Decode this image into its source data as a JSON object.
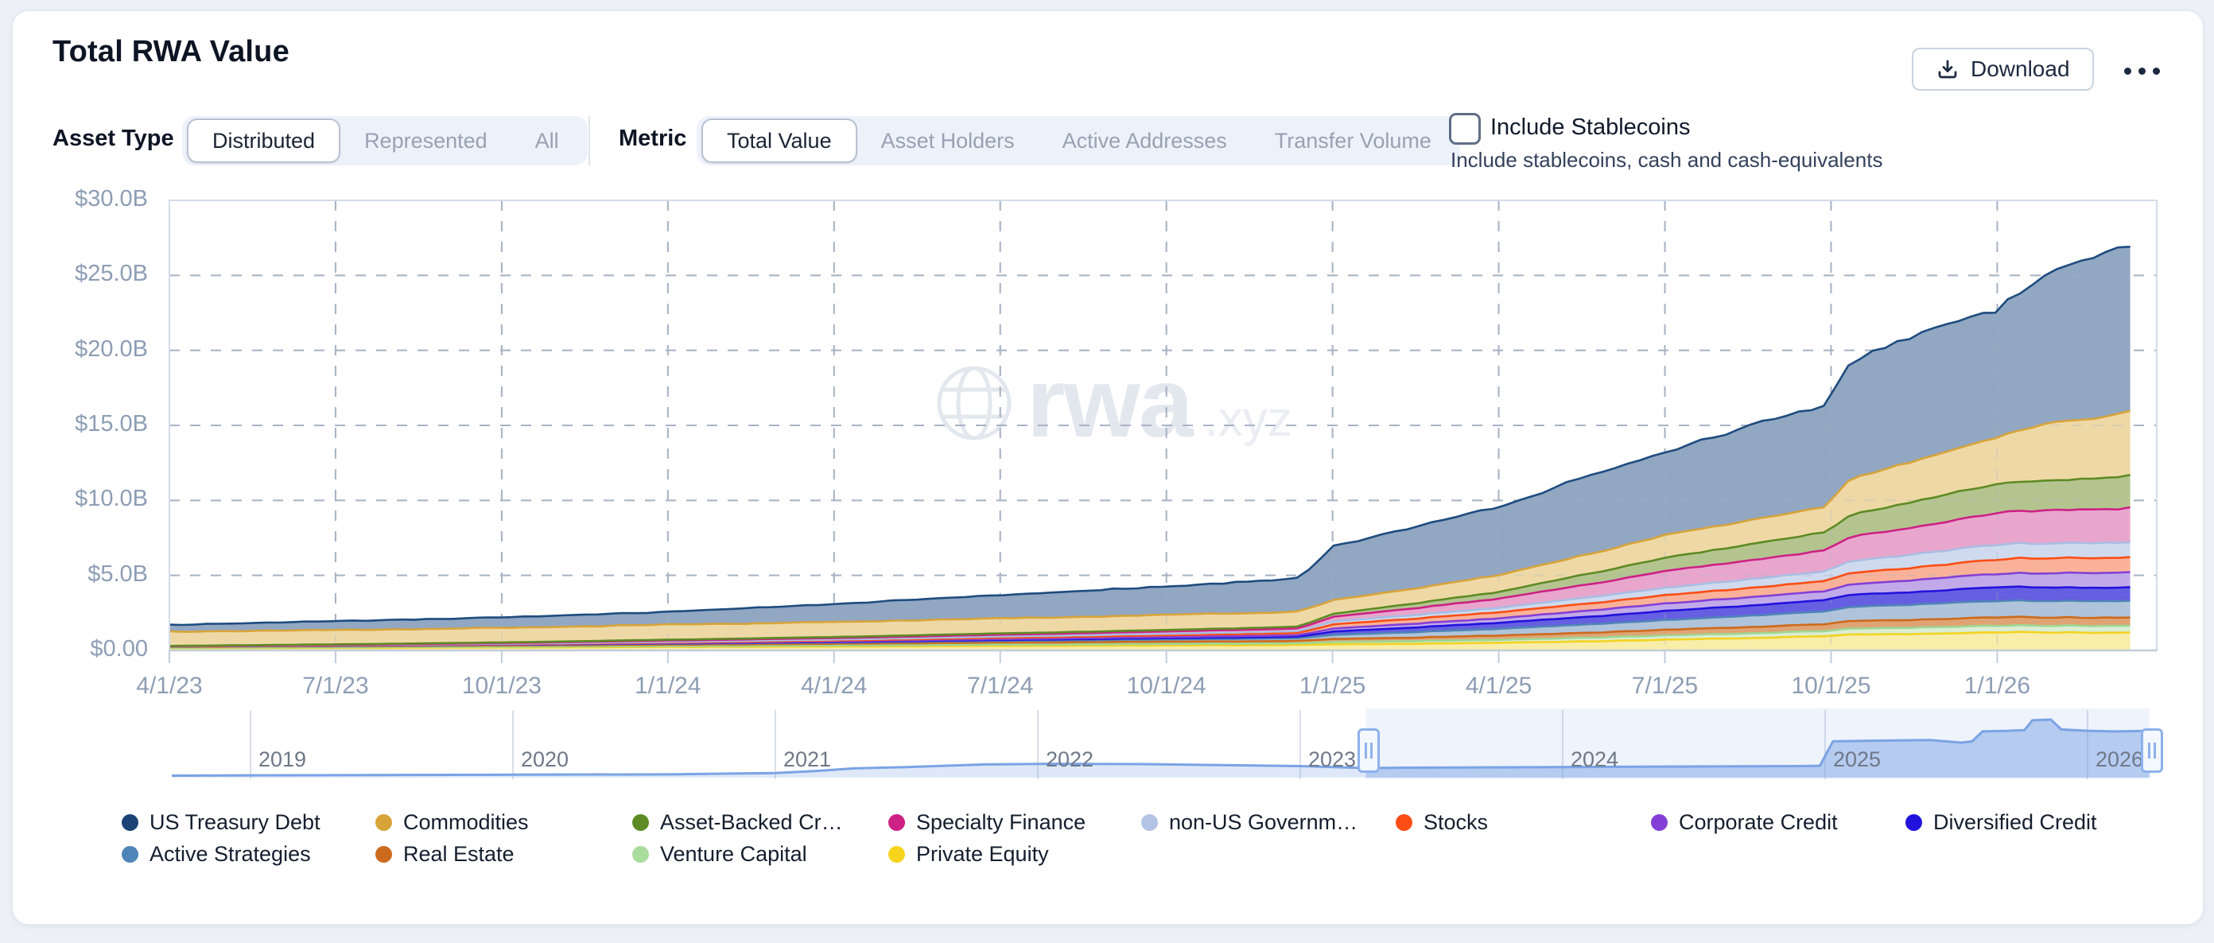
{
  "header": {
    "title": "Total RWA Value",
    "download_label": "Download"
  },
  "controls": {
    "asset_type": {
      "label": "Asset Type",
      "options": [
        "Distributed",
        "Represented",
        "All"
      ],
      "selected": "Distributed"
    },
    "metric": {
      "label": "Metric",
      "options": [
        "Total Value",
        "Asset Holders",
        "Active Addresses",
        "Transfer Volume"
      ],
      "selected": "Total Value"
    },
    "stablecoins": {
      "label": "Include Stablecoins",
      "sublabel": "Include stablecoins, cash and cash-equivalents",
      "checked": false
    }
  },
  "watermark": {
    "text": "rwa",
    "suffix": ".xyz"
  },
  "chart_data": {
    "type": "area",
    "stacked": true,
    "title": "Total RWA Value",
    "ylabel": "Total Value (USD)",
    "ylim": [
      0,
      30
    ],
    "grid": true,
    "legend_position": "bottom",
    "y_ticks": [
      {
        "value": 30,
        "label": "$30.0B"
      },
      {
        "value": 25,
        "label": "$25.0B"
      },
      {
        "value": 20,
        "label": "$20.0B"
      },
      {
        "value": 15,
        "label": "$15.0B"
      },
      {
        "value": 10,
        "label": "$10.0B"
      },
      {
        "value": 5,
        "label": "$5.0B"
      },
      {
        "value": 0,
        "label": "$0.00"
      }
    ],
    "x_ticks": [
      {
        "year": 2023.25,
        "label": "4/1/23"
      },
      {
        "year": 2023.5,
        "label": "7/1/23"
      },
      {
        "year": 2023.75,
        "label": "10/1/23"
      },
      {
        "year": 2024.0,
        "label": "1/1/24"
      },
      {
        "year": 2024.25,
        "label": "4/1/24"
      },
      {
        "year": 2024.5,
        "label": "7/1/24"
      },
      {
        "year": 2024.75,
        "label": "10/1/24"
      },
      {
        "year": 2025.0,
        "label": "1/1/25"
      },
      {
        "year": 2025.25,
        "label": "4/1/25"
      },
      {
        "year": 2025.5,
        "label": "7/1/25"
      },
      {
        "year": 2025.75,
        "label": "10/1/25"
      },
      {
        "year": 2026.0,
        "label": "1/1/26"
      }
    ],
    "x_range": [
      2023.25,
      2026.24
    ],
    "keyframe_years": [
      2023.25,
      2023.5,
      2023.75,
      2024.0,
      2024.25,
      2024.5,
      2024.75,
      2024.95,
      2025.0,
      2025.25,
      2025.5,
      2025.74,
      2025.78,
      2026.0,
      2026.08,
      2026.2
    ],
    "series": [
      {
        "name": "US Treasury Debt",
        "label": "US Treasury Debt",
        "color": "#1b4376",
        "line": "#1e4c7f",
        "fill": "#92a7c2",
        "values_billions": [
          0.45,
          0.6,
          0.7,
          0.85,
          1.2,
          1.55,
          1.9,
          2.2,
          3.6,
          4.6,
          5.6,
          6.8,
          8.0,
          8.6,
          10.2,
          11.0
        ]
      },
      {
        "name": "Commodities",
        "label": "Commodities",
        "color": "#d8a43a",
        "line": "#d8a43a",
        "fill": "#eed9a6",
        "values_billions": [
          0.95,
          0.95,
          0.97,
          1.0,
          1.0,
          1.0,
          1.0,
          1.0,
          0.9,
          1.1,
          1.5,
          1.7,
          2.4,
          3.1,
          3.8,
          4.3
        ]
      },
      {
        "name": "Asset-Backed Credit",
        "label": "Asset-Backed Cr…",
        "color": "#5e8b24",
        "line": "#5e8b24",
        "fill": "#b4c48f",
        "values_billions": [
          0.02,
          0.03,
          0.04,
          0.06,
          0.07,
          0.09,
          0.1,
          0.12,
          0.2,
          0.45,
          0.9,
          1.2,
          1.5,
          1.95,
          2.0,
          2.1
        ]
      },
      {
        "name": "Specialty Finance",
        "label": "Specialty Finance",
        "color": "#cd2186",
        "line": "#cd2186",
        "fill": "#e9a6cd",
        "values_billions": [
          0.01,
          0.02,
          0.05,
          0.08,
          0.1,
          0.12,
          0.15,
          0.18,
          0.3,
          0.6,
          1.1,
          1.4,
          1.6,
          2.1,
          2.2,
          2.3
        ]
      },
      {
        "name": "non-US Government Debt",
        "label": "non-US Governm…",
        "color": "#b3c3e6",
        "line": "#a9bce2",
        "fill": "#cfdaee",
        "values_billions": [
          0.0,
          0.01,
          0.02,
          0.04,
          0.06,
          0.08,
          0.1,
          0.12,
          0.2,
          0.3,
          0.5,
          0.65,
          0.8,
          1.0,
          1.0,
          1.0
        ]
      },
      {
        "name": "Stocks",
        "label": "Stocks",
        "color": "#fb4d15",
        "line": "#fb4d15",
        "fill": "#f9b299",
        "values_billions": [
          0.0,
          0.01,
          0.02,
          0.04,
          0.06,
          0.09,
          0.12,
          0.15,
          0.28,
          0.4,
          0.55,
          0.68,
          0.75,
          0.95,
          1.0,
          1.0
        ]
      },
      {
        "name": "Corporate Credit",
        "label": "Corporate Credit",
        "color": "#8440d6",
        "line": "#8440d6",
        "fill": "#c2aaea",
        "values_billions": [
          0.0,
          0.01,
          0.01,
          0.02,
          0.04,
          0.06,
          0.08,
          0.1,
          0.2,
          0.3,
          0.5,
          0.6,
          0.7,
          0.9,
          0.95,
          1.0
        ]
      },
      {
        "name": "Diversified Credit",
        "label": "Diversified Credit",
        "color": "#2213dc",
        "line": "#2213dc",
        "fill": "#675fe2",
        "values_billions": [
          0.0,
          0.0,
          0.01,
          0.02,
          0.03,
          0.05,
          0.08,
          0.1,
          0.22,
          0.4,
          0.6,
          0.75,
          0.8,
          0.9,
          0.9,
          0.9
        ]
      },
      {
        "name": "Active Strategies",
        "label": "Active Strategies",
        "color": "#4f84b8",
        "line": "#4f84b8",
        "fill": "#afc4da",
        "values_billions": [
          0.03,
          0.04,
          0.05,
          0.07,
          0.09,
          0.12,
          0.15,
          0.18,
          0.28,
          0.45,
          0.65,
          0.85,
          0.95,
          1.1,
          1.1,
          1.1
        ]
      },
      {
        "name": "Real Estate",
        "label": "Real Estate",
        "color": "#cd6a1d",
        "line": "#cd6a1d",
        "fill": "#e0a474",
        "values_billions": [
          0.06,
          0.07,
          0.08,
          0.09,
          0.11,
          0.13,
          0.15,
          0.16,
          0.2,
          0.28,
          0.38,
          0.45,
          0.5,
          0.55,
          0.55,
          0.55
        ]
      },
      {
        "name": "Venture Capital",
        "label": "Venture Capital",
        "color": "#a9dd9d",
        "line": "#9fd693",
        "fill": "#daeed3",
        "values_billions": [
          0.03,
          0.04,
          0.05,
          0.06,
          0.07,
          0.09,
          0.1,
          0.11,
          0.15,
          0.2,
          0.28,
          0.35,
          0.4,
          0.45,
          0.45,
          0.45
        ]
      },
      {
        "name": "Private Equity",
        "label": "Private Equity",
        "color": "#f6d41b",
        "line": "#f2d322",
        "fill": "#f8eda9",
        "values_billions": [
          0.15,
          0.17,
          0.2,
          0.23,
          0.26,
          0.3,
          0.33,
          0.36,
          0.4,
          0.5,
          0.7,
          0.95,
          1.05,
          1.2,
          1.2,
          1.2
        ]
      }
    ],
    "minimap": {
      "year_labels": [
        "2019",
        "2020",
        "2021",
        "2022",
        "2023",
        "2024",
        "2025",
        "2026"
      ],
      "years": [
        2018.7,
        2019,
        2019.5,
        2020,
        2020.6,
        2021,
        2021.15,
        2021.3,
        2021.5,
        2021.8,
        2022.05,
        2022.4,
        2022.7,
        2023.0,
        2023.25,
        2023.4,
        2023.7,
        2024.0,
        2024.3,
        2024.6,
        2024.9,
        2024.98,
        2025.03,
        2025.2,
        2025.4,
        2025.52,
        2025.56,
        2025.6,
        2025.7,
        2025.76,
        2025.79,
        2025.86,
        2025.9,
        2026.0,
        2026.1,
        2026.24
      ],
      "fractions": [
        0.03,
        0.035,
        0.04,
        0.045,
        0.05,
        0.07,
        0.1,
        0.14,
        0.16,
        0.2,
        0.21,
        0.205,
        0.19,
        0.175,
        0.145,
        0.15,
        0.155,
        0.16,
        0.165,
        0.17,
        0.175,
        0.18,
        0.55,
        0.56,
        0.57,
        0.53,
        0.55,
        0.7,
        0.71,
        0.72,
        0.87,
        0.88,
        0.73,
        0.71,
        0.7,
        0.71
      ],
      "selection_years": [
        2023.25,
        2026.235
      ]
    }
  }
}
